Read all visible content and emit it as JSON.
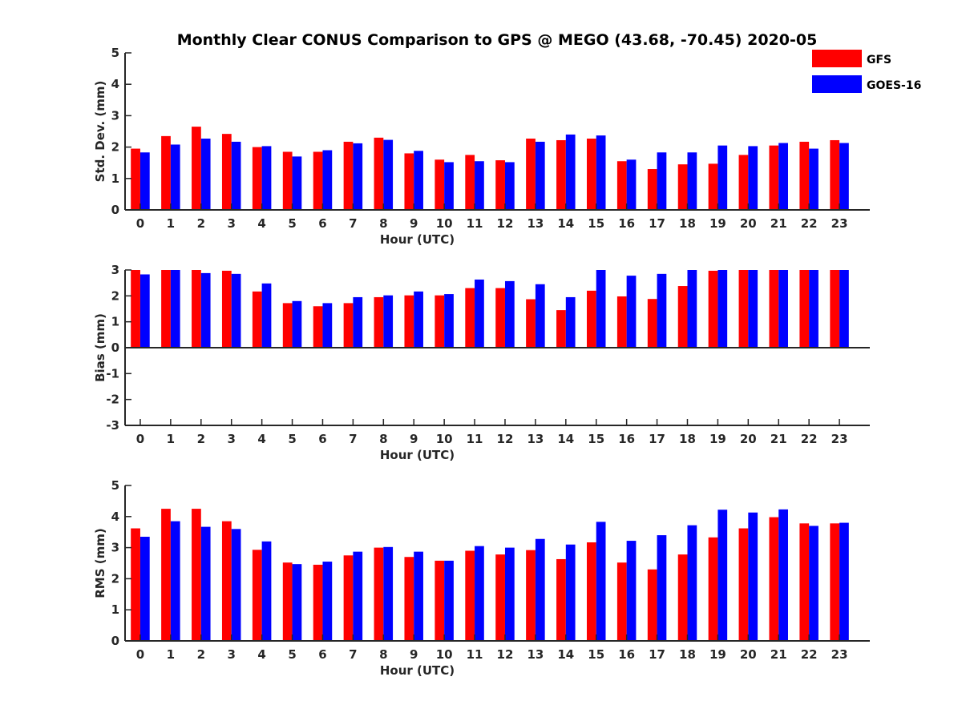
{
  "figure": {
    "title": "Monthly Clear CONUS Comparison to GPS @ MEGO (43.68, -70.45) 2020-05"
  },
  "legend": {
    "placement": "top-right",
    "entries": [
      {
        "label": "GFS",
        "color": "#ff0000"
      },
      {
        "label": "GOES-16",
        "color": "#0000ff"
      }
    ]
  },
  "chart_data": [
    {
      "type": "bar",
      "xlabel": "Hour (UTC)",
      "ylabel": "Std. Dev. (mm)",
      "ylim": [
        0,
        5
      ],
      "yticks": [
        0,
        1,
        2,
        3,
        4,
        5
      ],
      "categories": [
        "0",
        "1",
        "2",
        "3",
        "4",
        "5",
        "6",
        "7",
        "8",
        "9",
        "10",
        "11",
        "12",
        "13",
        "14",
        "15",
        "16",
        "17",
        "18",
        "19",
        "20",
        "21",
        "22",
        "23"
      ],
      "series": [
        {
          "name": "GFS",
          "color": "#ff0000",
          "values": [
            1.95,
            2.35,
            2.65,
            2.42,
            2.0,
            1.85,
            1.85,
            2.17,
            2.3,
            1.8,
            1.6,
            1.75,
            1.58,
            2.27,
            2.22,
            2.27,
            1.55,
            1.3,
            1.45,
            1.47,
            1.75,
            2.05,
            2.17,
            2.22
          ]
        },
        {
          "name": "GOES-16",
          "color": "#0000ff",
          "values": [
            1.83,
            2.08,
            2.27,
            2.17,
            2.03,
            1.7,
            1.9,
            2.12,
            2.23,
            1.88,
            1.52,
            1.55,
            1.52,
            2.17,
            2.4,
            2.37,
            1.6,
            1.83,
            1.83,
            2.05,
            2.03,
            2.13,
            1.95,
            2.13
          ]
        }
      ]
    },
    {
      "type": "bar",
      "xlabel": "Hour (UTC)",
      "ylabel": "Bias (mm)",
      "ylim": [
        -3,
        3
      ],
      "yticks": [
        -3,
        -2,
        -1,
        0,
        1,
        2,
        3
      ],
      "categories": [
        "0",
        "1",
        "2",
        "3",
        "4",
        "5",
        "6",
        "7",
        "8",
        "9",
        "10",
        "11",
        "12",
        "13",
        "14",
        "15",
        "16",
        "17",
        "18",
        "19",
        "20",
        "21",
        "22",
        "23"
      ],
      "series": [
        {
          "name": "GFS",
          "color": "#ff0000",
          "values": [
            3.0,
            3.0,
            3.0,
            2.97,
            2.17,
            1.72,
            1.6,
            1.72,
            1.95,
            2.02,
            2.02,
            2.3,
            2.3,
            1.87,
            1.45,
            2.2,
            1.98,
            1.88,
            2.38,
            2.97,
            3.0,
            3.0,
            3.0,
            3.0
          ]
        },
        {
          "name": "GOES-16",
          "color": "#0000ff",
          "values": [
            2.83,
            3.0,
            2.88,
            2.85,
            2.48,
            1.8,
            1.72,
            1.95,
            2.02,
            2.17,
            2.07,
            2.63,
            2.57,
            2.45,
            1.95,
            3.0,
            2.78,
            2.85,
            3.0,
            3.0,
            3.0,
            3.0,
            3.0,
            3.0
          ]
        }
      ]
    },
    {
      "type": "bar",
      "xlabel": "Hour (UTC)",
      "ylabel": "RMS (mm)",
      "ylim": [
        0,
        5
      ],
      "yticks": [
        0,
        1,
        2,
        3,
        4,
        5
      ],
      "categories": [
        "0",
        "1",
        "2",
        "3",
        "4",
        "5",
        "6",
        "7",
        "8",
        "9",
        "10",
        "11",
        "12",
        "13",
        "14",
        "15",
        "16",
        "17",
        "18",
        "19",
        "20",
        "21",
        "22",
        "23"
      ],
      "series": [
        {
          "name": "GFS",
          "color": "#ff0000",
          "values": [
            3.62,
            4.25,
            4.25,
            3.85,
            2.93,
            2.52,
            2.45,
            2.75,
            3.0,
            2.7,
            2.58,
            2.9,
            2.78,
            2.92,
            2.63,
            3.17,
            2.52,
            2.3,
            2.78,
            3.33,
            3.62,
            3.98,
            3.78,
            3.78
          ]
        },
        {
          "name": "GOES-16",
          "color": "#0000ff",
          "values": [
            3.35,
            3.85,
            3.67,
            3.6,
            3.2,
            2.47,
            2.55,
            2.87,
            3.02,
            2.87,
            2.58,
            3.05,
            3.0,
            3.28,
            3.1,
            3.83,
            3.22,
            3.4,
            3.72,
            4.22,
            4.13,
            4.23,
            3.7,
            3.8
          ]
        }
      ]
    }
  ]
}
